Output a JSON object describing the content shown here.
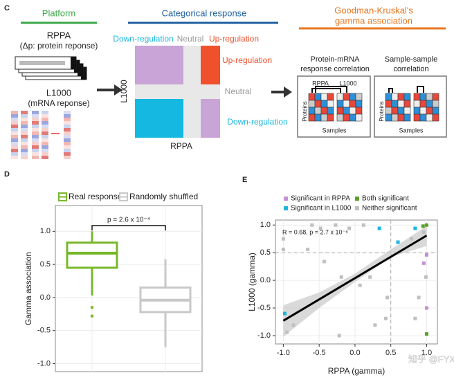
{
  "panel_c": {
    "label": "C",
    "platform": {
      "title": "Platform",
      "rppa": "RPPA",
      "rppa_note": "(Δp: protein reponse)",
      "l1000": "L1000",
      "l1000_note": "(mRNA reponse)"
    },
    "categorical": {
      "title": "Categorical response",
      "top_labels": [
        "Down-regulation",
        "Neutral",
        "Up-regulation"
      ],
      "y_label": "L1000",
      "x_label": "RPPA",
      "side_labels": [
        "Up-regulation",
        "Neutral",
        "Down-regulation"
      ]
    },
    "gamma": {
      "title_lines": [
        "Goodman-Kruskal's",
        "gamma association"
      ],
      "boxes": [
        {
          "title_lines": [
            "Protein-mRNA",
            "response correlation"
          ],
          "groups": [
            "RPPA",
            "L1000"
          ],
          "y_label": "Proteins",
          "x_label": "Samples"
        },
        {
          "title_lines": [
            "Sample-sample",
            "correlation"
          ],
          "y_label": "Proteins",
          "x_label": "Samples"
        }
      ]
    }
  },
  "chart_data": [
    {
      "type": "box",
      "panel_label": "D",
      "ylabel": "Gamma association",
      "annotation": "p = 2.6 x 10⁻⁴",
      "ylim": [
        -1.12,
        1.39
      ],
      "yticks": [
        {
          "value": -1,
          "label": "-1.0"
        },
        -0.5,
        {
          "value": 0,
          "label": "0.0"
        },
        0.5,
        {
          "value": 1,
          "label": "1.0"
        }
      ],
      "grid": true,
      "boxes": [
        {
          "name": "Real response",
          "color": "#77b82a",
          "min": 0.03,
          "q1": 0.45,
          "median": 0.67,
          "q3": 0.83,
          "max": 1.0,
          "outliers": [
            -0.15,
            -0.28
          ]
        },
        {
          "name": "Randomly shuffled",
          "color": "#c8c8c8",
          "min": -0.75,
          "q1": -0.22,
          "median": -0.04,
          "q3": 0.15,
          "max": 0.58,
          "outliers": []
        }
      ]
    },
    {
      "type": "scatter",
      "panel_label": "E",
      "xlabel": "RPPA (gamma)",
      "ylabel": "L1000 (gamma)",
      "annotation": "R = 0.68, p = 2.7 x 10⁻⁶",
      "xlim": [
        -1.11,
        1.15
      ],
      "ylim": [
        -1.15,
        1.09
      ],
      "xticks": [
        {
          "value": -1,
          "label": "-1.0"
        },
        -0.5,
        {
          "value": 0,
          "label": "0.0"
        },
        0.5,
        {
          "value": 1,
          "label": "1.0"
        }
      ],
      "yticks": [
        {
          "value": -1,
          "label": "-1.0"
        },
        -0.5,
        {
          "value": 0,
          "label": "0.0"
        },
        0.5,
        {
          "value": 1,
          "label": "1.0"
        }
      ],
      "grid": true,
      "threshold": {
        "x": 0.5,
        "y": 0.5
      },
      "trend": {
        "x": [
          -1.0,
          1.0
        ],
        "values": [
          -0.73,
          0.81
        ]
      },
      "band": {
        "x": [
          -1.0,
          -0.5,
          0.0,
          0.5,
          1.0
        ],
        "lower": [
          -1.02,
          -0.5,
          -0.03,
          0.42,
          0.62
        ],
        "upper": [
          -0.45,
          -0.22,
          0.12,
          0.56,
          0.98
        ]
      },
      "series": [
        {
          "name": "Significant in RPPA",
          "color": "#c58fd6",
          "x": [
            1.0,
            1.0,
            0.96
          ],
          "values": [
            0.46,
            -0.5,
            0.31
          ]
        },
        {
          "name": "Both significant",
          "color": "#5aa02c",
          "x": [
            0.95,
            1.0,
            1.0
          ],
          "values": [
            0.98,
            1.0,
            -0.97
          ]
        },
        {
          "name": "Significant in L1000",
          "color": "#1ab7e0",
          "x": [
            0.34,
            0.84,
            0.6,
            -0.98
          ],
          "values": [
            0.94,
            0.94,
            0.69,
            -0.6
          ]
        },
        {
          "name": "Neither significant",
          "color": "#c0c0c0",
          "x": [
            -0.6,
            -0.48,
            -0.27,
            -0.08,
            0.12,
            -1.0,
            -0.66,
            -1.0,
            -0.43,
            -0.19,
            0.21,
            0.07,
            0.45,
            0.43,
            0.28,
            -0.22,
            -0.86,
            -0.95,
            0.99,
            0.89,
            0.79,
            0.84,
            0.96
          ],
          "values": [
            1.0,
            0.94,
            1.0,
            0.94,
            1.0,
            0.75,
            0.56,
            0.56,
            0.34,
            0.06,
            0.06,
            -0.09,
            -0.31,
            -0.69,
            -0.81,
            -1.0,
            -0.81,
            -0.94,
            0.06,
            -0.31,
            0.75,
            -0.69,
            0.87
          ]
        }
      ]
    }
  ],
  "watermark": "知乎 @FYXN"
}
